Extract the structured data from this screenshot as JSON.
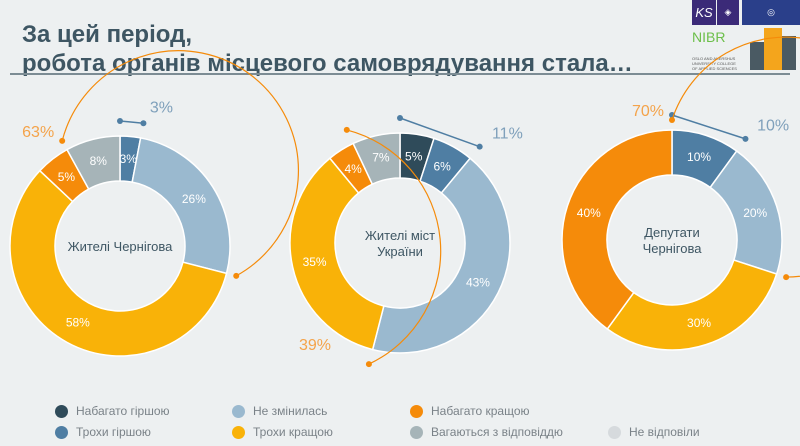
{
  "title": {
    "line1": "За цей період,",
    "line2": "робота органів місцевого самоврядування стала…"
  },
  "logos": {
    "ks": "KS",
    "nibr": "NIBR",
    "oslo": "OSLO AND AKERSHUS UNIVERSITY COLLEGE OF APPLIED SCIENCES"
  },
  "colors": {
    "much_worse": "#2f4b5a",
    "worse": "#4f7ea3",
    "same": "#9ab9cf",
    "better": "#f9b208",
    "much_better": "#f58b0a",
    "hesitate": "#a6b4b8",
    "no_answer": "#d6dadd"
  },
  "chart_data": [
    {
      "type": "pie",
      "title": "Жителі Чернігова",
      "labels": [
        "Трохи гіршою",
        "Не змінилась",
        "Трохи кращою",
        "Набагато кращою",
        "Вагаються з відповіддю"
      ],
      "keys": [
        "worse",
        "same",
        "better",
        "much_better",
        "hesitate"
      ],
      "values": [
        3,
        26,
        58,
        5,
        8
      ],
      "annotations": [
        {
          "label": "3%",
          "from": 0,
          "to": 3,
          "color": "#4f7ea3"
        },
        {
          "label": "63%",
          "from": 29,
          "to": 92,
          "color": "#f58b0a"
        }
      ]
    },
    {
      "type": "pie",
      "title": "Жителі міст України",
      "labels": [
        "Набагато гіршою",
        "Трохи гіршою",
        "Не змінилась",
        "Трохи кращою",
        "Набагато кращою",
        "Вагаються з відповіддю"
      ],
      "keys": [
        "much_worse",
        "worse",
        "same",
        "better",
        "much_better",
        "hesitate"
      ],
      "values": [
        5,
        6,
        43,
        35,
        4,
        7
      ],
      "annotations": [
        {
          "label": "11%",
          "from": 0,
          "to": 11,
          "color": "#4f7ea3"
        },
        {
          "label": "39%",
          "from": 54,
          "to": 93,
          "color": "#f58b0a"
        }
      ]
    },
    {
      "type": "pie",
      "title": "Депутати Чернігова",
      "labels": [
        "Трохи гіршою",
        "Не змінилась",
        "Трохи кращою",
        "Набагато кращою"
      ],
      "keys": [
        "worse",
        "same",
        "better",
        "much_better"
      ],
      "values": [
        10,
        20,
        30,
        40
      ],
      "annotations": [
        {
          "label": "10%",
          "from": 0,
          "to": 10,
          "color": "#4f7ea3"
        },
        {
          "label": "70%",
          "from": 30,
          "to": 100,
          "color": "#f58b0a"
        }
      ]
    }
  ],
  "legend": [
    {
      "label": "Набагато гіршою",
      "key": "much_worse"
    },
    {
      "label": "Трохи гіршою",
      "key": "worse"
    },
    {
      "label": "Не змінилась",
      "key": "same"
    },
    {
      "label": "Трохи кращою",
      "key": "better"
    },
    {
      "label": "Набагато кращою",
      "key": "much_better"
    },
    {
      "label": "Вагаються з відповіддю",
      "key": "hesitate"
    },
    {
      "label": "Не відповіли",
      "key": "no_answer"
    }
  ]
}
